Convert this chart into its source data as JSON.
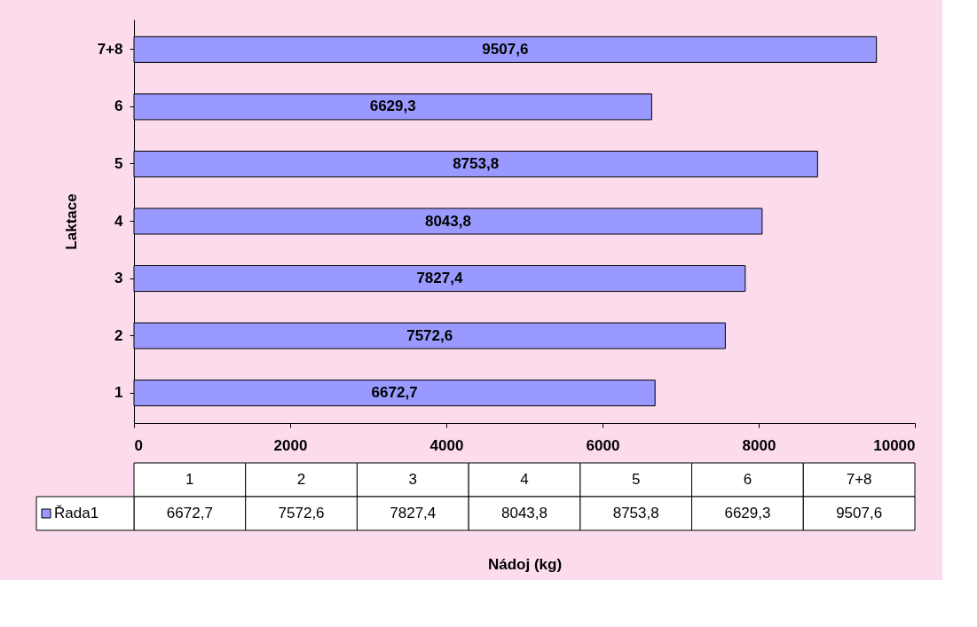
{
  "chart_data": {
    "type": "bar",
    "orientation": "horizontal",
    "ylabel": "Laktace",
    "annotations": [
      "Nádoj (kg)"
    ],
    "categories": [
      "7+8",
      "6",
      "5",
      "4",
      "3",
      "2",
      "1"
    ],
    "series": [
      {
        "name": "Řada1",
        "color": "#9999ff",
        "values": [
          9507.6,
          6629.3,
          8753.8,
          8043.8,
          7827.4,
          7572.6,
          6672.7
        ],
        "value_labels": [
          "9507,6",
          "6629,3",
          "8753,8",
          "8043,8",
          "7827,4",
          "7572,6",
          "6672,7"
        ]
      }
    ],
    "xlim": [
      0,
      10000
    ],
    "xticks": [
      0,
      2000,
      4000,
      6000,
      8000,
      10000
    ],
    "grid": false,
    "legend": "bottom"
  }
}
